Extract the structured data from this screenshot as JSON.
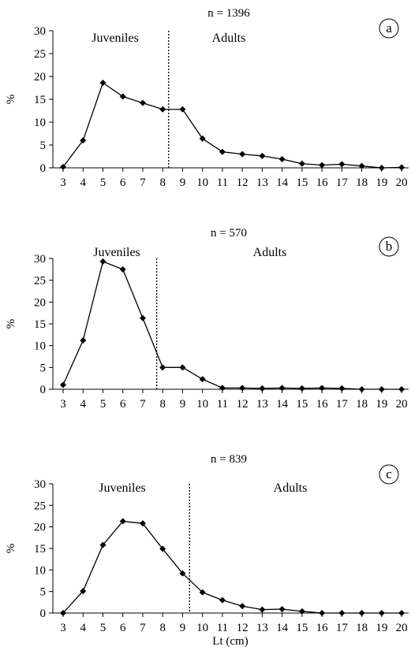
{
  "x_axis_label": "Lt (cm)",
  "chart_data": [
    {
      "type": "line",
      "panel_label": "a",
      "title": "n = 1396",
      "ylabel": "%",
      "ylim": [
        0,
        30
      ],
      "yticks": [
        0,
        5,
        10,
        15,
        20,
        25,
        30
      ],
      "xticks": [
        "3",
        "4",
        "5",
        "6",
        "7",
        "8",
        "9",
        "10",
        "11",
        "12",
        "13",
        "14",
        "15",
        "16",
        "17",
        "18",
        "19",
        "20"
      ],
      "x": [
        3,
        4,
        5,
        6,
        7,
        8,
        9,
        10,
        11,
        12,
        13,
        14,
        15,
        16,
        17,
        18,
        19,
        20
      ],
      "values": [
        0.2,
        6.0,
        18.6,
        15.6,
        14.2,
        12.8,
        12.8,
        6.4,
        3.5,
        3.0,
        2.6,
        1.9,
        0.9,
        0.6,
        0.8,
        0.4,
        0.0,
        0.1
      ],
      "divider_x": 8.3,
      "regions": [
        "Juveniles",
        "Adults"
      ]
    },
    {
      "type": "line",
      "panel_label": "b",
      "title": "n = 570",
      "ylabel": "%",
      "ylim": [
        0,
        30
      ],
      "yticks": [
        0,
        5,
        10,
        15,
        20,
        25,
        30
      ],
      "xticks": [
        "3",
        "4",
        "5",
        "6",
        "7",
        "8",
        "9",
        "10",
        "11",
        "12",
        "13",
        "14",
        "15",
        "16",
        "17",
        "18",
        "19",
        "20"
      ],
      "x": [
        3,
        4,
        5,
        6,
        7,
        8,
        9,
        10,
        11,
        12,
        13,
        14,
        15,
        16,
        17,
        18,
        19,
        20
      ],
      "values": [
        1.0,
        11.2,
        29.3,
        27.5,
        16.3,
        5.0,
        5.0,
        2.3,
        0.3,
        0.3,
        0.2,
        0.3,
        0.2,
        0.3,
        0.2,
        0.0,
        0.0,
        0.0
      ],
      "divider_x": 7.7,
      "regions": [
        "Juveniles",
        "Adults"
      ]
    },
    {
      "type": "line",
      "panel_label": "c",
      "title": "n = 839",
      "ylabel": "%",
      "ylim": [
        0,
        30
      ],
      "yticks": [
        0,
        5,
        10,
        15,
        20,
        25,
        30
      ],
      "xticks": [
        "3",
        "4",
        "5",
        "6",
        "7",
        "8",
        "9",
        "10",
        "11",
        "12",
        "13",
        "14",
        "15",
        "16",
        "17",
        "18",
        "19",
        "20"
      ],
      "x": [
        3,
        4,
        5,
        6,
        7,
        8,
        9,
        10,
        11,
        12,
        13,
        14,
        15,
        16,
        17,
        18,
        19,
        20
      ],
      "values": [
        0.0,
        5.1,
        15.8,
        21.3,
        20.8,
        14.9,
        9.2,
        4.8,
        3.0,
        1.6,
        0.8,
        0.9,
        0.4,
        0.0,
        0.0,
        0.0,
        0.0,
        0.0
      ],
      "divider_x": 9.35,
      "regions": [
        "Juveniles",
        "Adults"
      ]
    }
  ]
}
